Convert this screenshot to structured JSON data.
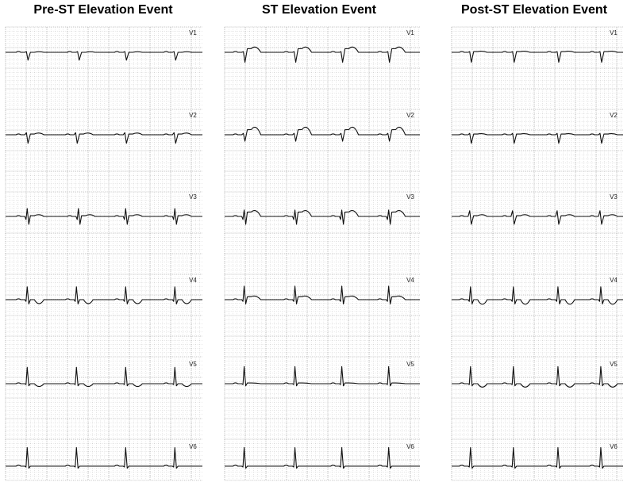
{
  "panels": [
    {
      "title": "Pre-ST Elevation Event",
      "leads": [
        {
          "name": "V1",
          "beats": [
            0.11,
            0.37,
            0.61,
            0.86
          ],
          "q": -0.55,
          "r": 0.05,
          "st": 0.0,
          "t": 0.05
        },
        {
          "name": "V2",
          "beats": [
            0.11,
            0.36,
            0.61,
            0.86
          ],
          "q": -0.6,
          "r": 0.15,
          "st": 0.05,
          "t": 0.1
        },
        {
          "name": "V3",
          "beats": [
            0.11,
            0.37,
            0.61,
            0.86
          ],
          "q": -0.55,
          "r": 0.55,
          "st": 0.05,
          "t": 0.1
        },
        {
          "name": "V4",
          "beats": [
            0.11,
            0.36,
            0.61,
            0.86
          ],
          "q": -0.3,
          "r": 0.9,
          "st": 0.0,
          "t": -0.35
        },
        {
          "name": "V5",
          "beats": [
            0.11,
            0.36,
            0.61,
            0.86
          ],
          "q": -0.15,
          "r": 1.15,
          "st": 0.0,
          "t": -0.25
        },
        {
          "name": "V6",
          "beats": [
            0.11,
            0.36,
            0.61,
            0.86
          ],
          "q": -0.15,
          "r": 1.3,
          "st": 0.0,
          "t": 0.0
        }
      ]
    },
    {
      "title": "ST Elevation Event",
      "leads": [
        {
          "name": "V1",
          "beats": [
            0.1,
            0.36,
            0.6,
            0.84
          ],
          "q": -0.7,
          "r": 0.05,
          "st": 0.25,
          "t": 0.2
        },
        {
          "name": "V2",
          "beats": [
            0.1,
            0.36,
            0.6,
            0.84
          ],
          "q": -0.45,
          "r": 0.1,
          "st": 0.35,
          "t": 0.3
        },
        {
          "name": "V3",
          "beats": [
            0.1,
            0.36,
            0.6,
            0.84
          ],
          "q": -0.55,
          "r": 0.45,
          "st": 0.3,
          "t": 0.2
        },
        {
          "name": "V4",
          "beats": [
            0.1,
            0.36,
            0.6,
            0.84
          ],
          "q": -0.3,
          "r": 0.95,
          "st": 0.2,
          "t": 0.1
        },
        {
          "name": "V5",
          "beats": [
            0.1,
            0.36,
            0.6,
            0.84
          ],
          "q": -0.15,
          "r": 1.2,
          "st": 0.05,
          "t": 0.0
        },
        {
          "name": "V6",
          "beats": [
            0.1,
            0.36,
            0.6,
            0.84
          ],
          "q": -0.15,
          "r": 1.3,
          "st": 0.0,
          "t": 0.0
        }
      ]
    },
    {
      "title": "Post-ST Elevation Event",
      "leads": [
        {
          "name": "V1",
          "beats": [
            0.11,
            0.36,
            0.62,
            0.87
          ],
          "q": -0.7,
          "r": 0.05,
          "st": 0.05,
          "t": 0.05
        },
        {
          "name": "V2",
          "beats": [
            0.11,
            0.36,
            0.62,
            0.87
          ],
          "q": -0.6,
          "r": 0.1,
          "st": 0.05,
          "t": 0.05
        },
        {
          "name": "V3",
          "beats": [
            0.11,
            0.36,
            0.62,
            0.87
          ],
          "q": -0.55,
          "r": 0.4,
          "st": 0.05,
          "t": 0.1
        },
        {
          "name": "V4",
          "beats": [
            0.11,
            0.36,
            0.62,
            0.87
          ],
          "q": -0.3,
          "r": 0.9,
          "st": 0.0,
          "t": -0.4
        },
        {
          "name": "V5",
          "beats": [
            0.11,
            0.36,
            0.62,
            0.87
          ],
          "q": -0.15,
          "r": 1.2,
          "st": 0.0,
          "t": -0.3
        },
        {
          "name": "V6",
          "beats": [
            0.11,
            0.36,
            0.62,
            0.87
          ],
          "q": -0.15,
          "r": 1.3,
          "st": 0.0,
          "t": 0.0
        }
      ]
    }
  ],
  "colors": {
    "grid_minor": "#bdbdbd",
    "grid_major": "#8c8c8c",
    "trace": "#111111",
    "background": "#ffffff"
  }
}
